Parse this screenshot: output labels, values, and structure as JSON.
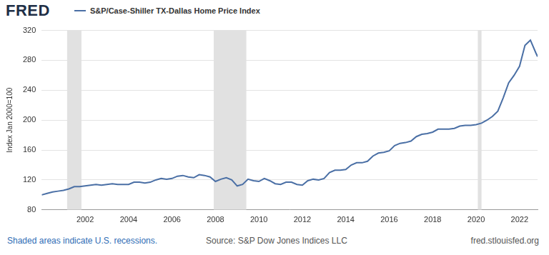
{
  "chart_data": {
    "type": "line",
    "logo": "FRED",
    "y_label": "Index Jan 2000=100",
    "x": [
      2000.0,
      2000.25,
      2000.5,
      2000.75,
      2001.0,
      2001.25,
      2001.5,
      2001.75,
      2002.0,
      2002.25,
      2002.5,
      2002.75,
      2003.0,
      2003.25,
      2003.5,
      2003.75,
      2004.0,
      2004.25,
      2004.5,
      2004.75,
      2005.0,
      2005.25,
      2005.5,
      2005.75,
      2006.0,
      2006.25,
      2006.5,
      2006.75,
      2007.0,
      2007.25,
      2007.5,
      2007.75,
      2008.0,
      2008.25,
      2008.5,
      2008.75,
      2009.0,
      2009.25,
      2009.5,
      2009.75,
      2010.0,
      2010.25,
      2010.5,
      2010.75,
      2011.0,
      2011.25,
      2011.5,
      2011.75,
      2012.0,
      2012.25,
      2012.5,
      2012.75,
      2013.0,
      2013.25,
      2013.5,
      2013.75,
      2014.0,
      2014.25,
      2014.5,
      2014.75,
      2015.0,
      2015.25,
      2015.5,
      2015.75,
      2016.0,
      2016.25,
      2016.5,
      2016.75,
      2017.0,
      2017.25,
      2017.5,
      2017.75,
      2018.0,
      2018.25,
      2018.5,
      2018.75,
      2019.0,
      2019.25,
      2019.5,
      2019.75,
      2020.0,
      2020.25,
      2020.5,
      2020.75,
      2021.0,
      2021.25,
      2021.5,
      2021.75,
      2022.0,
      2022.25,
      2022.5,
      2022.75,
      2022.83
    ],
    "series": [
      {
        "name": "S&P/Case-Shiller TX-Dallas Home Price Index",
        "color": "#4a6fa5",
        "values": [
          100,
          102,
          104,
          105,
          106,
          108,
          111,
          111,
          112,
          113,
          114,
          113,
          114,
          115,
          114,
          114,
          114,
          117,
          117,
          116,
          117,
          120,
          122,
          121,
          122,
          125,
          126,
          124,
          123,
          127,
          126,
          124,
          118,
          121,
          123,
          120,
          112,
          114,
          121,
          119,
          118,
          122,
          119,
          115,
          114,
          117,
          117,
          114,
          113,
          119,
          121,
          120,
          122,
          130,
          133,
          133,
          134,
          140,
          143,
          143,
          145,
          152,
          156,
          157,
          159,
          166,
          169,
          170,
          172,
          178,
          181,
          182,
          184,
          188,
          188,
          188,
          189,
          192,
          193,
          193,
          194,
          196,
          200,
          205,
          212,
          230,
          250,
          260,
          272,
          300,
          307,
          290,
          285
        ]
      }
    ],
    "xlim": [
      2000,
      2022.83
    ],
    "xticks": [
      2002,
      2004,
      2006,
      2008,
      2010,
      2012,
      2014,
      2016,
      2018,
      2020,
      2022
    ],
    "ylim": [
      80,
      320
    ],
    "yticks": [
      80,
      120,
      160,
      200,
      240,
      280,
      320
    ],
    "grid": true,
    "recessions": [
      [
        2001.17,
        2001.83
      ],
      [
        2007.92,
        2009.42
      ],
      [
        2020.08,
        2020.25
      ]
    ],
    "note": "Shaded areas indicate U.S. recessions.",
    "source": "Source: S&P Dow Jones Indices LLC",
    "url": "fred.stlouisfed.org"
  }
}
